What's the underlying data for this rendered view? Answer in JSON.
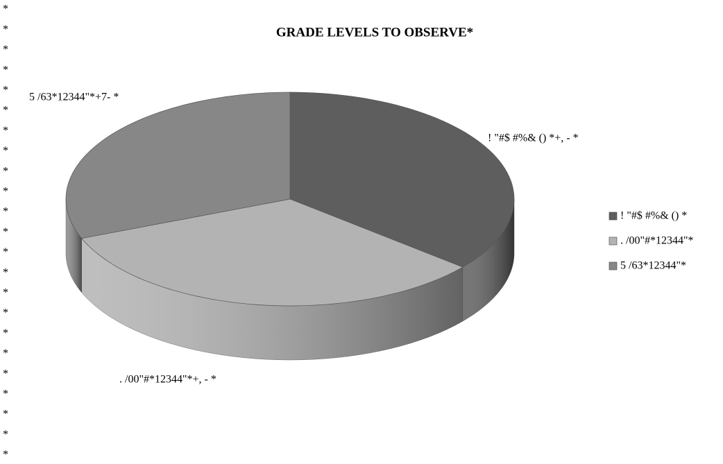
{
  "chart_data": {
    "type": "pie",
    "title": "GRADE LEVELS TO OBSERVE*",
    "categories": [
      "! \"#$ #%& () *",
      ". /00\"#*12344\"*",
      "5 /63*12344\"*"
    ],
    "values": [
      36,
      33,
      31
    ],
    "value_labels": [
      "! \"#$ #%& () *+, -  *",
      ". /00\"#*12344\"*+, -  *",
      "5 /63*12344\"*+7-  *"
    ],
    "colors": [
      "#5e5e5e",
      "#b3b3b3",
      "#878787"
    ],
    "legend": "right",
    "margin_marks": [
      "*",
      "*",
      "*",
      "*",
      "*",
      "*",
      "*",
      "*",
      "*",
      "*",
      "*",
      "*",
      "*",
      "*",
      "*",
      "*",
      "*",
      "*",
      "*",
      "*",
      "*",
      "*",
      "*"
    ]
  }
}
